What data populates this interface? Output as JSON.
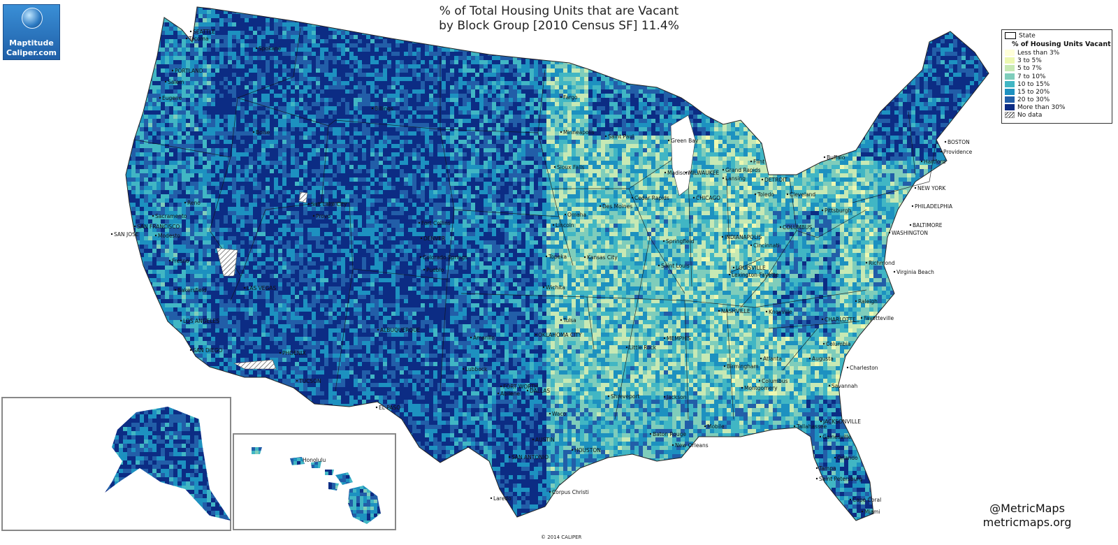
{
  "title": {
    "line1": "% of Total Housing Units that are Vacant",
    "line2": "by Block Group [2010 Census SF] 11.4%"
  },
  "logo": {
    "line1": "Maptitude",
    "line2": "Caliper.com",
    "icon": "globe-icon"
  },
  "legend": {
    "state_label": "State",
    "title": "% of Housing Units Vacant",
    "classes": [
      {
        "label": "Less than 3%",
        "color": "#ffffd9"
      },
      {
        "label": "3 to 5%",
        "color": "#edf8b1"
      },
      {
        "label": "5 to 7%",
        "color": "#c7e9b4"
      },
      {
        "label": "7 to 10%",
        "color": "#7fcdbb"
      },
      {
        "label": "10 to 15%",
        "color": "#41b6c4"
      },
      {
        "label": "15 to 20%",
        "color": "#1d91c0"
      },
      {
        "label": "20 to 30%",
        "color": "#225ea8"
      },
      {
        "label": "More than 30%",
        "color": "#0c2c84"
      }
    ],
    "no_data_label": "No data"
  },
  "credits": {
    "handle": "@MetricMaps",
    "site": "metricmaps.org"
  },
  "copyright": "© 2014 CALIPER",
  "cities": [
    "SEATTLE",
    "Tacoma",
    "Spokane",
    "PORTLAND",
    "Salem",
    "Eugene",
    "Billings",
    "Boise",
    "Fargo",
    "Minneapolis",
    "Saint Paul",
    "Green Bay",
    "Sioux Falls",
    "Madison",
    "MILWAUKEE",
    "Grand Rapids",
    "Flint",
    "Lansing",
    "DETROIT",
    "Buffalo",
    "BOSTON",
    "Providence",
    "Hartford",
    "Reno",
    "Salt Lake City",
    "Provo",
    "Sacramento",
    "SAN FRANCISCO",
    "SAN JOSE",
    "Modesto",
    "Fresno",
    "Bakersfield",
    "LAS VEGAS",
    "LOS ANGELES",
    "SAN DIEGO",
    "PHOENIX",
    "TUCSON",
    "Fort Collins",
    "DENVER",
    "Colorado Springs",
    "Pueblo",
    "Omaha",
    "Lincoln",
    "Des Moines",
    "Cedar Rapids",
    "CHICAGO",
    "Toledo",
    "Cleveland",
    "Pittsburgh",
    "NEW YORK",
    "PHILADELPHIA",
    "BALTIMORE",
    "WASHINGTON",
    "COLUMBUS",
    "INDIANAPOLIS",
    "Cincinnati",
    "Springfield",
    "Saint Louis",
    "Topeka",
    "Kansas City",
    "Wichita",
    "LOUISVILLE",
    "Lexington-Fayette",
    "Richmond",
    "Virginia Beach",
    "ALBUQUERQUE",
    "Amarillo",
    "Lubbock",
    "OKLAHOMA CITY",
    "Tulsa",
    "Little Rock",
    "NASHVILLE",
    "Knoxville",
    "CHARLOTTE",
    "Raleigh",
    "Fayetteville",
    "MEMPHIS",
    "Birmingham",
    "Atlanta",
    "Columbia",
    "Augusta",
    "Charleston",
    "Savannah",
    "Montgomery",
    "Columbus",
    "FORT WORTH",
    "DALLAS",
    "Abilene",
    "EL PASO",
    "Shreveport",
    "Jackson",
    "Waco",
    "AUSTIN",
    "SAN ANTONIO",
    "HOUSTON",
    "Baton Rouge",
    "New Orleans",
    "Mobile",
    "Tallahassee",
    "JACKSONVILLE",
    "Gainesville",
    "Orlando",
    "Tampa",
    "Saint Petersburg",
    "Cape Coral",
    "Miami",
    "Corpus Christi",
    "Laredo",
    "Honolulu"
  ]
}
